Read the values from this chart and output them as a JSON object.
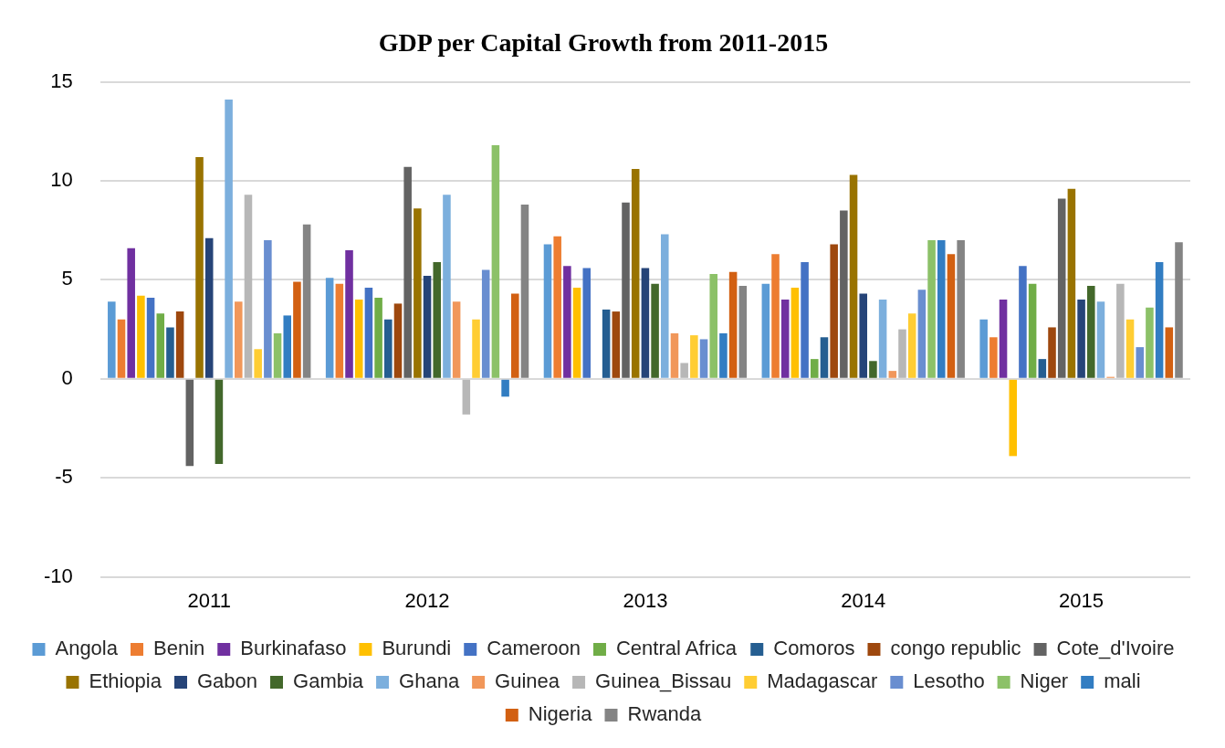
{
  "chart_data": {
    "type": "bar",
    "title": "GDP per Capital Growth from 2011-2015",
    "categories": [
      "2011",
      "2012",
      "2013",
      "2014",
      "2015"
    ],
    "ylim": [
      -10,
      15
    ],
    "yticks": [
      -10,
      -5,
      0,
      5,
      10,
      15
    ],
    "grid": "y",
    "legend": "bottom",
    "series": [
      {
        "name": "Angola",
        "color": "#5b9bd5",
        "values": [
          3.9,
          5.1,
          6.8,
          4.8,
          3.0
        ]
      },
      {
        "name": "Benin",
        "color": "#ed7d31",
        "values": [
          3.0,
          4.8,
          7.2,
          6.3,
          2.1
        ]
      },
      {
        "name": "Burkinafaso",
        "color": "#7030a0",
        "values": [
          6.6,
          6.5,
          5.7,
          4.0,
          4.0
        ]
      },
      {
        "name": "Burundi",
        "color": "#ffc000",
        "values": [
          4.2,
          4.0,
          4.6,
          4.6,
          -3.9
        ]
      },
      {
        "name": "Cameroon",
        "color": "#4472c4",
        "values": [
          4.1,
          4.6,
          5.6,
          5.9,
          5.7
        ]
      },
      {
        "name": "Central Africa",
        "color": "#70ad47",
        "values": [
          3.3,
          4.1,
          null,
          1.0,
          4.8
        ]
      },
      {
        "name": "Comoros",
        "color": "#255e91",
        "values": [
          2.6,
          3.0,
          3.5,
          2.1,
          1.0
        ]
      },
      {
        "name": "congo republic",
        "color": "#9e480e",
        "values": [
          3.4,
          3.8,
          3.4,
          6.8,
          2.6
        ]
      },
      {
        "name": "Cote_d'Ivoire",
        "color": "#636363",
        "values": [
          -4.4,
          10.7,
          8.9,
          8.5,
          9.1
        ]
      },
      {
        "name": "Ethiopia",
        "color": "#997300",
        "values": [
          11.2,
          8.6,
          10.6,
          10.3,
          9.6
        ]
      },
      {
        "name": "Gabon",
        "color": "#264478",
        "values": [
          7.1,
          5.2,
          5.6,
          4.3,
          4.0
        ]
      },
      {
        "name": "Gambia",
        "color": "#43682b",
        "values": [
          -4.3,
          5.9,
          4.8,
          0.9,
          4.7
        ]
      },
      {
        "name": "Ghana",
        "color": "#7cafdd",
        "values": [
          14.1,
          9.3,
          7.3,
          4.0,
          3.9
        ]
      },
      {
        "name": "Guinea",
        "color": "#f1975a",
        "values": [
          3.9,
          3.9,
          2.3,
          0.4,
          0.1
        ]
      },
      {
        "name": "Guinea_Bissau",
        "color": "#b7b7b7",
        "values": [
          9.3,
          -1.8,
          0.8,
          2.5,
          4.8
        ]
      },
      {
        "name": "Madagascar",
        "color": "#ffcd33",
        "values": [
          1.5,
          3.0,
          2.2,
          3.3,
          3.0
        ]
      },
      {
        "name": "Lesotho",
        "color": "#698ed0",
        "values": [
          7.0,
          5.5,
          2.0,
          4.5,
          1.6
        ]
      },
      {
        "name": "Niger",
        "color": "#8cc168",
        "values": [
          2.3,
          11.8,
          5.3,
          7.0,
          3.6
        ]
      },
      {
        "name": "mali",
        "color": "#327dc2",
        "values": [
          3.2,
          -0.9,
          2.3,
          7.0,
          5.9
        ]
      },
      {
        "name": "Nigeria",
        "color": "#d26012",
        "values": [
          4.9,
          4.3,
          5.4,
          6.3,
          2.6
        ]
      },
      {
        "name": "Rwanda",
        "color": "#848484",
        "values": [
          7.8,
          8.8,
          4.7,
          7.0,
          6.9
        ]
      }
    ]
  }
}
